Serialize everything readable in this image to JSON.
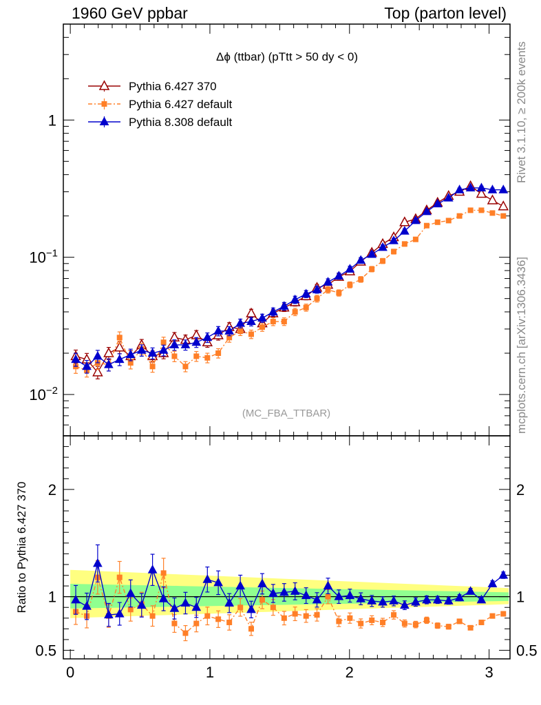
{
  "header": {
    "left": "1960 GeV ppbar",
    "right": "Top (parton level)"
  },
  "side": {
    "rivet": "Rivet 3.1.10, ≥ 200k events",
    "mcplots": "mcplots.cern.ch [arXiv:1306.3436]"
  },
  "chart_data": [
    {
      "type": "line",
      "title": "Δϕ (ttbar) (pTtt > 50 dy < 0)",
      "watermark": "(MC_FBA_TTBAR)",
      "xlabel": "",
      "ylabel": "",
      "yscale": "log",
      "xlim": [
        -0.05,
        3.15
      ],
      "ylim": [
        0.005,
        5
      ],
      "grid": false,
      "legend_position": "top-left",
      "x_ticks": [
        "0",
        "1",
        "2",
        "3"
      ],
      "y_ticks": [
        "10^-2",
        "10^-1",
        "1"
      ],
      "x": [
        0.039,
        0.118,
        0.196,
        0.275,
        0.353,
        0.432,
        0.511,
        0.589,
        0.668,
        0.746,
        0.825,
        0.903,
        0.982,
        1.06,
        1.139,
        1.218,
        1.296,
        1.375,
        1.453,
        1.532,
        1.61,
        1.689,
        1.767,
        1.846,
        1.924,
        2.003,
        2.081,
        2.16,
        2.238,
        2.317,
        2.395,
        2.474,
        2.553,
        2.631,
        2.71,
        2.788,
        2.867,
        2.945,
        3.024,
        3.102
      ],
      "series": [
        {
          "name": "Pythia 6.427 370",
          "color": "#990000",
          "marker": "open-triangle",
          "values": [
            0.019,
            0.018,
            0.0145,
            0.02,
            0.022,
            0.019,
            0.023,
            0.019,
            0.02,
            0.026,
            0.025,
            0.027,
            0.024,
            0.027,
            0.031,
            0.03,
            0.039,
            0.033,
            0.039,
            0.043,
            0.047,
            0.052,
            0.06,
            0.063,
            0.072,
            0.079,
            0.093,
            0.108,
            0.125,
            0.14,
            0.18,
            0.19,
            0.22,
            0.25,
            0.28,
            0.3,
            0.33,
            0.29,
            0.26,
            0.235
          ]
        },
        {
          "name": "Pythia 6.427 default",
          "color": "#ff7f27",
          "marker": "filled-square",
          "values": [
            0.016,
            0.015,
            0.017,
            0.0165,
            0.026,
            0.017,
            0.0215,
            0.016,
            0.024,
            0.019,
            0.016,
            0.019,
            0.0185,
            0.02,
            0.026,
            0.029,
            0.0275,
            0.031,
            0.034,
            0.034,
            0.04,
            0.043,
            0.05,
            0.058,
            0.055,
            0.063,
            0.069,
            0.082,
            0.094,
            0.11,
            0.125,
            0.135,
            0.17,
            0.18,
            0.185,
            0.2,
            0.22,
            0.22,
            0.21,
            0.2
          ]
        },
        {
          "name": "Pythia 8.308 default",
          "color": "#0000cc",
          "marker": "filled-triangle",
          "values": [
            0.018,
            0.016,
            0.019,
            0.0165,
            0.018,
            0.0195,
            0.021,
            0.02,
            0.021,
            0.023,
            0.023,
            0.024,
            0.026,
            0.029,
            0.029,
            0.033,
            0.034,
            0.036,
            0.04,
            0.044,
            0.049,
            0.054,
            0.058,
            0.066,
            0.073,
            0.082,
            0.095,
            0.105,
            0.118,
            0.132,
            0.155,
            0.185,
            0.215,
            0.245,
            0.27,
            0.31,
            0.32,
            0.32,
            0.31,
            0.31
          ]
        }
      ]
    },
    {
      "type": "line",
      "title": "",
      "xlabel": "",
      "ylabel": "Ratio to Pythia 6.427 370",
      "xlim": [
        -0.05,
        3.15
      ],
      "ylim": [
        0.42,
        2.5
      ],
      "x_ticks": [
        "0",
        "1",
        "2",
        "3"
      ],
      "y_ticks": [
        "0.5",
        "1",
        "2"
      ],
      "reference_line": 1,
      "uncertainty_bands": [
        {
          "name": "yellow band",
          "color": "#ffff80",
          "lower_start": 0.8,
          "lower_end": 0.93,
          "upper_start": 1.25,
          "upper_end": 1.08
        },
        {
          "name": "green band",
          "color": "#90ff90",
          "lower_start": 0.89,
          "lower_end": 0.96,
          "upper_start": 1.12,
          "upper_end": 1.04
        }
      ],
      "series": [
        {
          "name": "Pythia 6.427 default",
          "color": "#ff7f27",
          "marker": "filled-square",
          "values": [
            0.86,
            0.82,
            1.18,
            0.82,
            1.18,
            0.88,
            0.93,
            0.82,
            1.22,
            0.75,
            0.66,
            0.75,
            0.82,
            0.79,
            0.76,
            0.9,
            0.7,
            0.97,
            0.9,
            0.8,
            0.84,
            0.82,
            0.83,
            1.0,
            0.77,
            0.8,
            0.75,
            0.78,
            0.76,
            0.83,
            0.75,
            0.74,
            0.78,
            0.73,
            0.72,
            0.77,
            0.71,
            0.76,
            0.82,
            0.84
          ]
        },
        {
          "name": "Pythia 8.308 default",
          "color": "#0000cc",
          "marker": "filled-triangle",
          "values": [
            0.97,
            0.91,
            1.31,
            0.83,
            0.84,
            1.03,
            0.92,
            1.25,
            0.98,
            0.89,
            0.94,
            0.9,
            1.16,
            1.13,
            0.94,
            1.1,
            0.88,
            1.12,
            1.03,
            1.04,
            1.05,
            1.01,
            0.97,
            1.1,
            1.0,
            1.01,
            0.98,
            0.96,
            0.95,
            0.96,
            0.92,
            0.95,
            0.97,
            0.97,
            0.96,
            0.99,
            1.05,
            0.97,
            1.12,
            1.2
          ]
        }
      ]
    }
  ]
}
